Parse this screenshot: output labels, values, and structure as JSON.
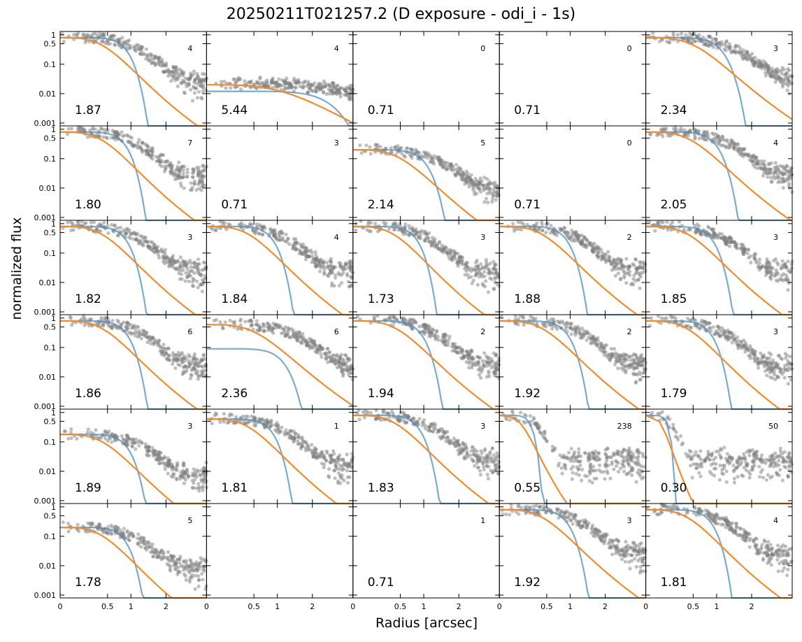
{
  "chart_data": {
    "type": "scatter",
    "title": "20250211T021257.2 (D exposure - odi_i - 1s)",
    "xlabel": "Radius [arcsec]",
    "ylabel": "normalized flux",
    "layout": {
      "rows": 6,
      "cols": 5
    },
    "xscale": "nonlinear",
    "yscale": "log",
    "ylim": [
      0.0008,
      1.3
    ],
    "x_ticks": [
      0,
      0.5,
      1,
      2
    ],
    "x_tick_labels": [
      "0",
      "0.5",
      "1",
      "2"
    ],
    "y_ticks": [
      0.001,
      0.01,
      0.1,
      0.5,
      1
    ],
    "y_tick_labels": [
      "0.001",
      "0.01",
      "0.1",
      "0.5",
      "1"
    ],
    "colors": {
      "points": "#808080",
      "model_blue": "#4d8fbd",
      "model_orange": "#f08c2e"
    },
    "panels": [
      {
        "fwhm": "1.87",
        "count": "4",
        "peak": 0.8,
        "points": true
      },
      {
        "fwhm": "5.44",
        "count": "4",
        "peak": 0.02,
        "points": true,
        "blue_peak": 0.012
      },
      {
        "fwhm": "0.71",
        "count": "0",
        "peak": 0,
        "points": false
      },
      {
        "fwhm": "0.71",
        "count": "0",
        "peak": 0,
        "points": false
      },
      {
        "fwhm": "2.34",
        "count": "3",
        "peak": 0.8,
        "points": true
      },
      {
        "fwhm": "1.80",
        "count": "7",
        "peak": 0.8,
        "points": true
      },
      {
        "fwhm": "0.71",
        "count": "3",
        "peak": 0,
        "points": false
      },
      {
        "fwhm": "2.14",
        "count": "5",
        "peak": 0.2,
        "points": true
      },
      {
        "fwhm": "0.71",
        "count": "0",
        "peak": 0,
        "points": false
      },
      {
        "fwhm": "2.05",
        "count": "4",
        "peak": 0.8,
        "points": true
      },
      {
        "fwhm": "1.82",
        "count": "3",
        "peak": 0.8,
        "points": true
      },
      {
        "fwhm": "1.84",
        "count": "4",
        "peak": 0.8,
        "points": true
      },
      {
        "fwhm": "1.73",
        "count": "3",
        "peak": 0.8,
        "points": true
      },
      {
        "fwhm": "1.88",
        "count": "2",
        "peak": 0.8,
        "points": true
      },
      {
        "fwhm": "1.85",
        "count": "3",
        "peak": 0.8,
        "points": true
      },
      {
        "fwhm": "1.86",
        "count": "6",
        "peak": 0.8,
        "points": true
      },
      {
        "fwhm": "2.36",
        "count": "6",
        "peak": 0.6,
        "points": true,
        "blue_peak": 0.09
      },
      {
        "fwhm": "1.94",
        "count": "2",
        "peak": 0.8,
        "points": true
      },
      {
        "fwhm": "1.92",
        "count": "2",
        "peak": 0.8,
        "points": true
      },
      {
        "fwhm": "1.79",
        "count": "3",
        "peak": 0.8,
        "points": true
      },
      {
        "fwhm": "1.89",
        "count": "3",
        "peak": 0.18,
        "points": true
      },
      {
        "fwhm": "1.81",
        "count": "1",
        "peak": 0.6,
        "points": true
      },
      {
        "fwhm": "1.83",
        "count": "3",
        "peak": 0.8,
        "points": true
      },
      {
        "fwhm": "0.55",
        "count": "238",
        "peak": 0.8,
        "points": true
      },
      {
        "fwhm": "0.30",
        "count": "50",
        "peak": 0.8,
        "points": true
      },
      {
        "fwhm": "1.78",
        "count": "5",
        "peak": 0.2,
        "points": true
      },
      {
        "fwhm": "",
        "count": "",
        "peak": 0,
        "points": false
      },
      {
        "fwhm": "0.71",
        "count": "1",
        "peak": 0,
        "points": false
      },
      {
        "fwhm": "1.92",
        "count": "3",
        "peak": 0.8,
        "points": true
      },
      {
        "fwhm": "1.81",
        "count": "4",
        "peak": 0.8,
        "points": true
      }
    ]
  }
}
